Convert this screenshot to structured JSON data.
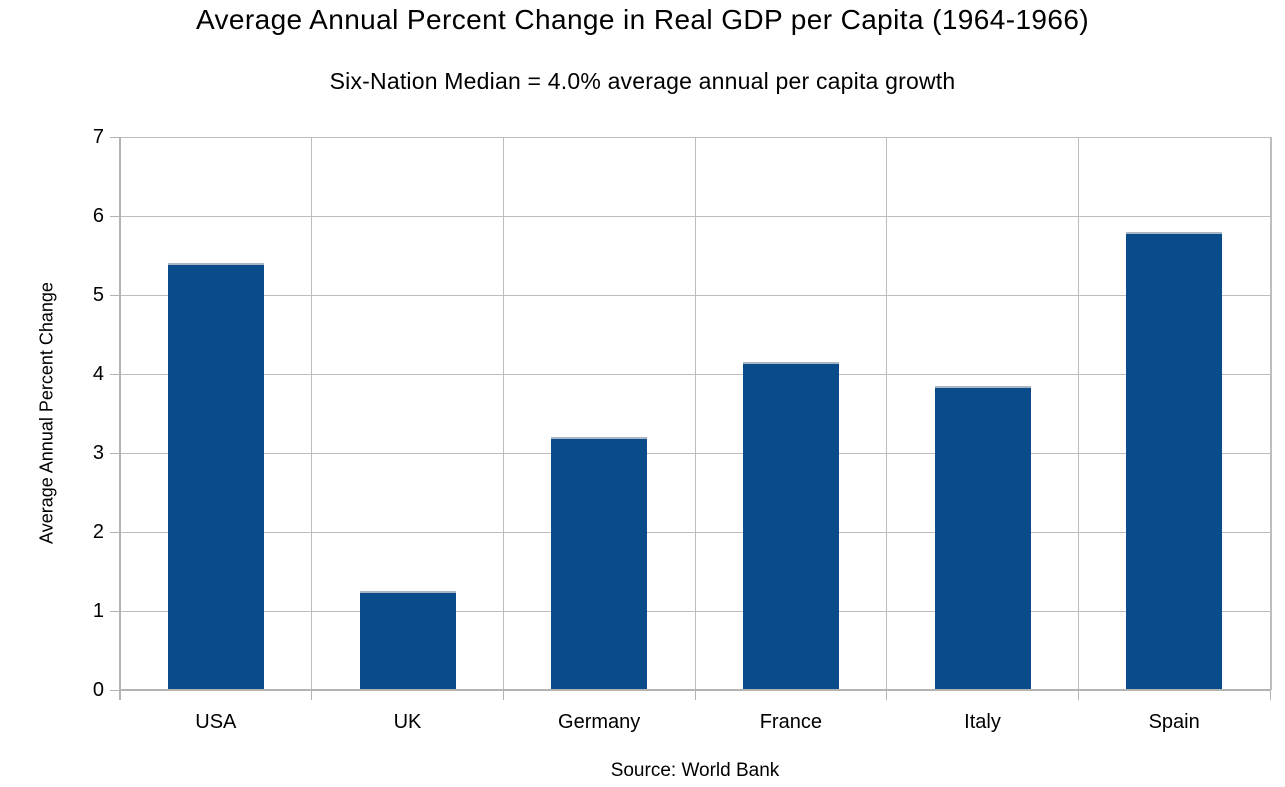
{
  "chart_data": {
    "type": "bar",
    "title": "Average Annual Percent Change in Real GDP per Capita (1964-1966)",
    "subtitle": "Six-Nation Median = 4.0% average annual per capita growth",
    "ylabel": "Average Annual Percent Change",
    "xlabel": "",
    "source": "Source: World Bank",
    "categories": [
      "USA",
      "UK",
      "Germany",
      "France",
      "Italy",
      "Spain"
    ],
    "values": [
      5.4,
      1.25,
      3.2,
      4.15,
      3.85,
      5.8
    ],
    "ylim": [
      0,
      7
    ],
    "yticks": [
      0,
      1,
      2,
      3,
      4,
      5,
      6,
      7
    ],
    "grid": true,
    "legend": "none",
    "bar_color": "#0a4b8c",
    "bar_border_color": "#a9b6c6",
    "gridline_color": "#bdbdbd",
    "axis_color": "#b3b3b3",
    "text_color": "#000000"
  }
}
